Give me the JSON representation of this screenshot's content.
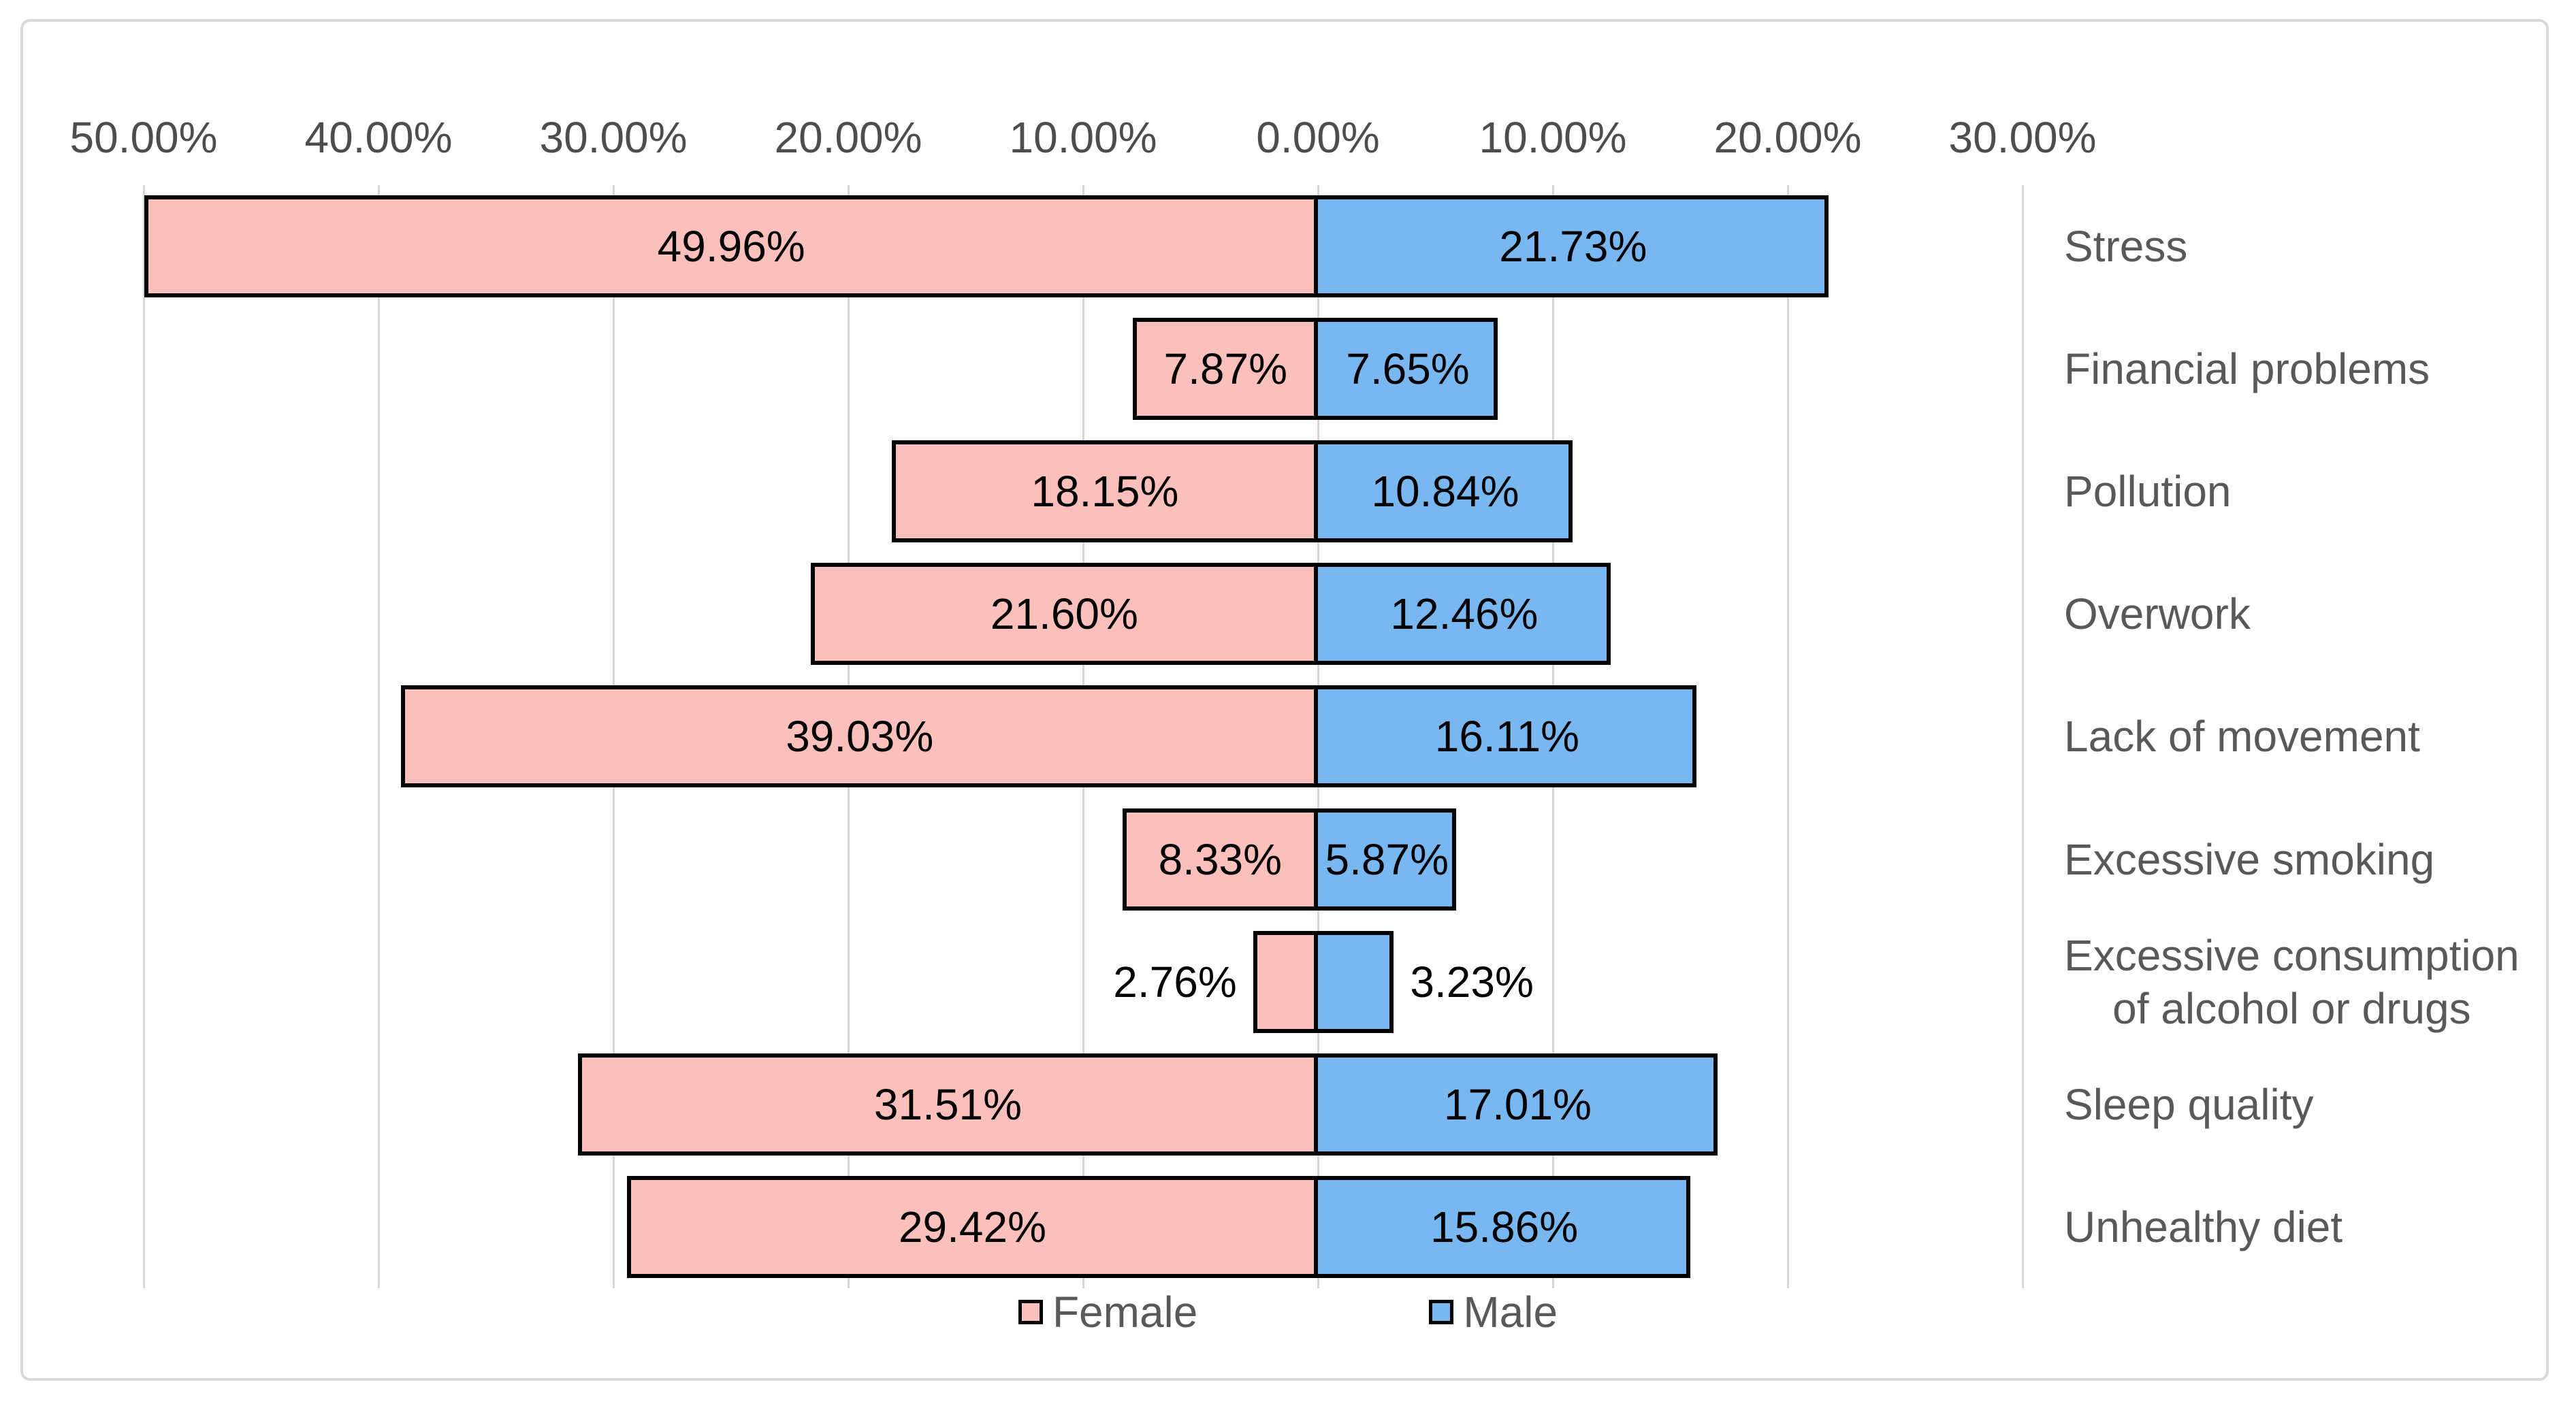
{
  "chart_data": {
    "type": "bar",
    "subtype": "diverging-horizontal-tornado",
    "title": "",
    "xlabel": "",
    "ylabel": "",
    "grid": true,
    "legend_position": "bottom-center",
    "axis_range_pct": [
      -50,
      30
    ],
    "categories": [
      {
        "label": "Stress",
        "lines": [
          "Stress"
        ]
      },
      {
        "label": "Financial problems",
        "lines": [
          "Financial problems"
        ]
      },
      {
        "label": "Pollution",
        "lines": [
          "Pollution"
        ]
      },
      {
        "label": "Overwork",
        "lines": [
          "Overwork"
        ]
      },
      {
        "label": "Lack of movement",
        "lines": [
          "Lack of movement"
        ]
      },
      {
        "label": "Excessive smoking",
        "lines": [
          "Excessive smoking"
        ]
      },
      {
        "label": "Excessive consumption of alcohol or drugs",
        "lines": [
          "Excessive consumption",
          "of alcohol or drugs"
        ]
      },
      {
        "label": "Sleep quality",
        "lines": [
          "Sleep quality"
        ]
      },
      {
        "label": "Unhealthy diet",
        "lines": [
          "Unhealthy diet"
        ]
      }
    ],
    "series": [
      {
        "name": "Female",
        "direction": "left",
        "color": "#fbc0bb",
        "values": [
          49.96,
          7.87,
          18.15,
          21.6,
          39.03,
          8.33,
          2.76,
          31.51,
          29.42
        ],
        "labels": [
          "49.96%",
          "7.87%",
          "18.15%",
          "21.60%",
          "39.03%",
          "8.33%",
          "2.76%",
          "31.51%",
          "29.42%"
        ]
      },
      {
        "name": "Male",
        "direction": "right",
        "color": "#79b7f1",
        "values": [
          21.73,
          7.65,
          10.84,
          12.46,
          16.11,
          5.87,
          3.23,
          17.01,
          15.86
        ],
        "labels": [
          "21.73%",
          "7.65%",
          "10.84%",
          "12.46%",
          "16.11%",
          "5.87%",
          "3.23%",
          "17.01%",
          "15.86%"
        ]
      }
    ],
    "x_axis": {
      "position": "top",
      "ticks": [
        {
          "label": "50.00%",
          "value": -50
        },
        {
          "label": "40.00%",
          "value": -40
        },
        {
          "label": "30.00%",
          "value": -30
        },
        {
          "label": "20.00%",
          "value": -20
        },
        {
          "label": "10.00%",
          "value": -10
        },
        {
          "label": "0.00%",
          "value": 0
        },
        {
          "label": "10.00%",
          "value": 10
        },
        {
          "label": "20.00%",
          "value": 20
        },
        {
          "label": "30.00%",
          "value": 30
        }
      ]
    }
  },
  "colors": {
    "female_fill": "#fbc0bb",
    "male_fill": "#79b7f1",
    "bar_border": "#000000",
    "gridline": "#d6d6d6",
    "chart_border": "#d9d9d9",
    "axis_text": "#4d4d4d",
    "category_text": "#595959",
    "legend_text": "#595959",
    "data_label_text": "#000000",
    "background": "#ffffff"
  }
}
